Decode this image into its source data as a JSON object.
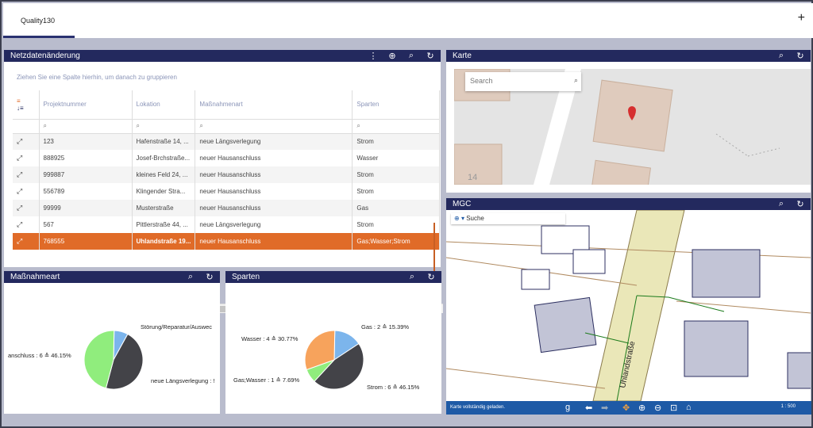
{
  "tabs": {
    "active_label": "Quality130"
  },
  "netz": {
    "title": "Netzdatenänderung",
    "group_hint": "Ziehen Sie eine Spalte hierhin, um danach zu gruppieren",
    "columns": [
      "Projektnummer",
      "Lokation",
      "Maßnahmenart",
      "Sparten"
    ],
    "rows": [
      {
        "nr": "123",
        "lok": "Hafenstraße 14, ...",
        "art": "neue Längsverlegung",
        "sp": "Strom"
      },
      {
        "nr": "888925",
        "lok": "Josef-Brchstraße...",
        "art": "neuer Hausanschluss",
        "sp": "Wasser"
      },
      {
        "nr": "999887",
        "lok": "kleines Feld 24, ...",
        "art": "neuer Hausanschluss",
        "sp": "Strom"
      },
      {
        "nr": "556789",
        "lok": "Klingender Stra...",
        "art": "neuer Hausanschluss",
        "sp": "Strom"
      },
      {
        "nr": "99999",
        "lok": "Musterstraße",
        "art": "neuer Hausanschluss",
        "sp": "Gas"
      },
      {
        "nr": "567",
        "lok": "Pittlerstraße 44, ...",
        "art": "neue Längsverlegung",
        "sp": "Strom"
      },
      {
        "nr": "768555",
        "lok": "Uhlandstraße 19...",
        "art": "neuer Hausanschluss",
        "sp": "Gas;Wasser;Strom"
      }
    ]
  },
  "karte": {
    "title": "Karte",
    "search_placeholder": "Search",
    "parcel_number": "14"
  },
  "mgc": {
    "title": "MGC",
    "search_label": "Suche",
    "status": "Karte vollständig geladen.",
    "scale": "1 : 500",
    "street": "Uhlandstraße"
  },
  "massnahme": {
    "title": "Maßnahmeart",
    "labels": [
      "Störung/Reparatur/Auswec",
      "anschluss : 6 ≙ 46.15%",
      "neue Längsverlegung : !"
    ]
  },
  "sparten": {
    "title": "Sparten",
    "labels": [
      "Gas : 2 ≙ 15.39%",
      "Wasser : 4 ≙ 30.77%",
      "Gas;Wasser : 1 ≙ 7.69%",
      "Strom : 6 ≙ 46.15%"
    ]
  },
  "chart_data": [
    {
      "type": "pie",
      "title": "Maßnahmeart",
      "slices": [
        {
          "name": "Störung/Reparatur/Auswec",
          "value": 1,
          "color": "#7cb5ec"
        },
        {
          "name": "neue Längsverlegung",
          "value": 6,
          "color": "#434348"
        },
        {
          "name": "neuer Hausanschluss",
          "value": 6,
          "color": "#90ed7d",
          "label": "neuer Hausanschluss : 6 ≙ 46.15%"
        }
      ]
    },
    {
      "type": "pie",
      "title": "Sparten",
      "slices": [
        {
          "name": "Gas",
          "value": 2,
          "percent": 15.39,
          "color": "#7cb5ec"
        },
        {
          "name": "Strom",
          "value": 6,
          "percent": 46.15,
          "color": "#434348"
        },
        {
          "name": "Gas;Wasser",
          "value": 1,
          "percent": 7.69,
          "color": "#90ed7d"
        },
        {
          "name": "Wasser",
          "value": 4,
          "percent": 30.77,
          "color": "#f7a35c"
        }
      ]
    }
  ]
}
